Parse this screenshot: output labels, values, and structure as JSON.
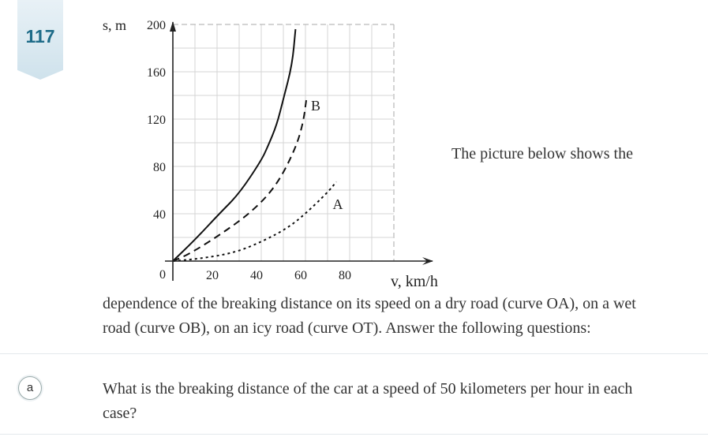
{
  "problem_number": "117",
  "intro_right": "The picture below shows the",
  "intro_body": [
    "dependence of the breaking distance on its speed on a dry road (curve OA), on a wet",
    "road (curve OB), on an icy road (curve OT). Answer the following questions:"
  ],
  "question": {
    "label": "a",
    "lines": [
      "What is the breaking distance of the car at a speed of 50 kilometers per hour in each",
      "case?"
    ]
  },
  "chart_data": {
    "type": "line",
    "xlabel": "v, km/h",
    "ylabel": "s, m",
    "xlim": [
      0,
      100
    ],
    "ylim": [
      0,
      200
    ],
    "x_ticks": [
      "20",
      "40",
      "60",
      "80"
    ],
    "y_ticks": [
      "40",
      "80",
      "120",
      "160",
      "200"
    ],
    "origin_label": "0",
    "grid": true,
    "series": [
      {
        "style": "solid",
        "points": [
          [
            0,
            0
          ],
          [
            10,
            18
          ],
          [
            21,
            40
          ],
          [
            30,
            57
          ],
          [
            40,
            85
          ],
          [
            43,
            97
          ],
          [
            47,
            115
          ],
          [
            50,
            137
          ],
          [
            54,
            166
          ],
          [
            55.5,
            196
          ]
        ]
      },
      {
        "name": "B",
        "style": "dashed",
        "points": [
          [
            0,
            0
          ],
          [
            7.5,
            6
          ],
          [
            22,
            23
          ],
          [
            36,
            42
          ],
          [
            47,
            64
          ],
          [
            55.5,
            95
          ],
          [
            59,
            117
          ],
          [
            60.5,
            138
          ]
        ]
      },
      {
        "name": "A",
        "style": "dotted",
        "points": [
          [
            0,
            0
          ],
          [
            12,
            2
          ],
          [
            28,
            7
          ],
          [
            41,
            17
          ],
          [
            52,
            28
          ],
          [
            60,
            40
          ],
          [
            70,
            58
          ],
          [
            74,
            67
          ]
        ]
      }
    ]
  }
}
